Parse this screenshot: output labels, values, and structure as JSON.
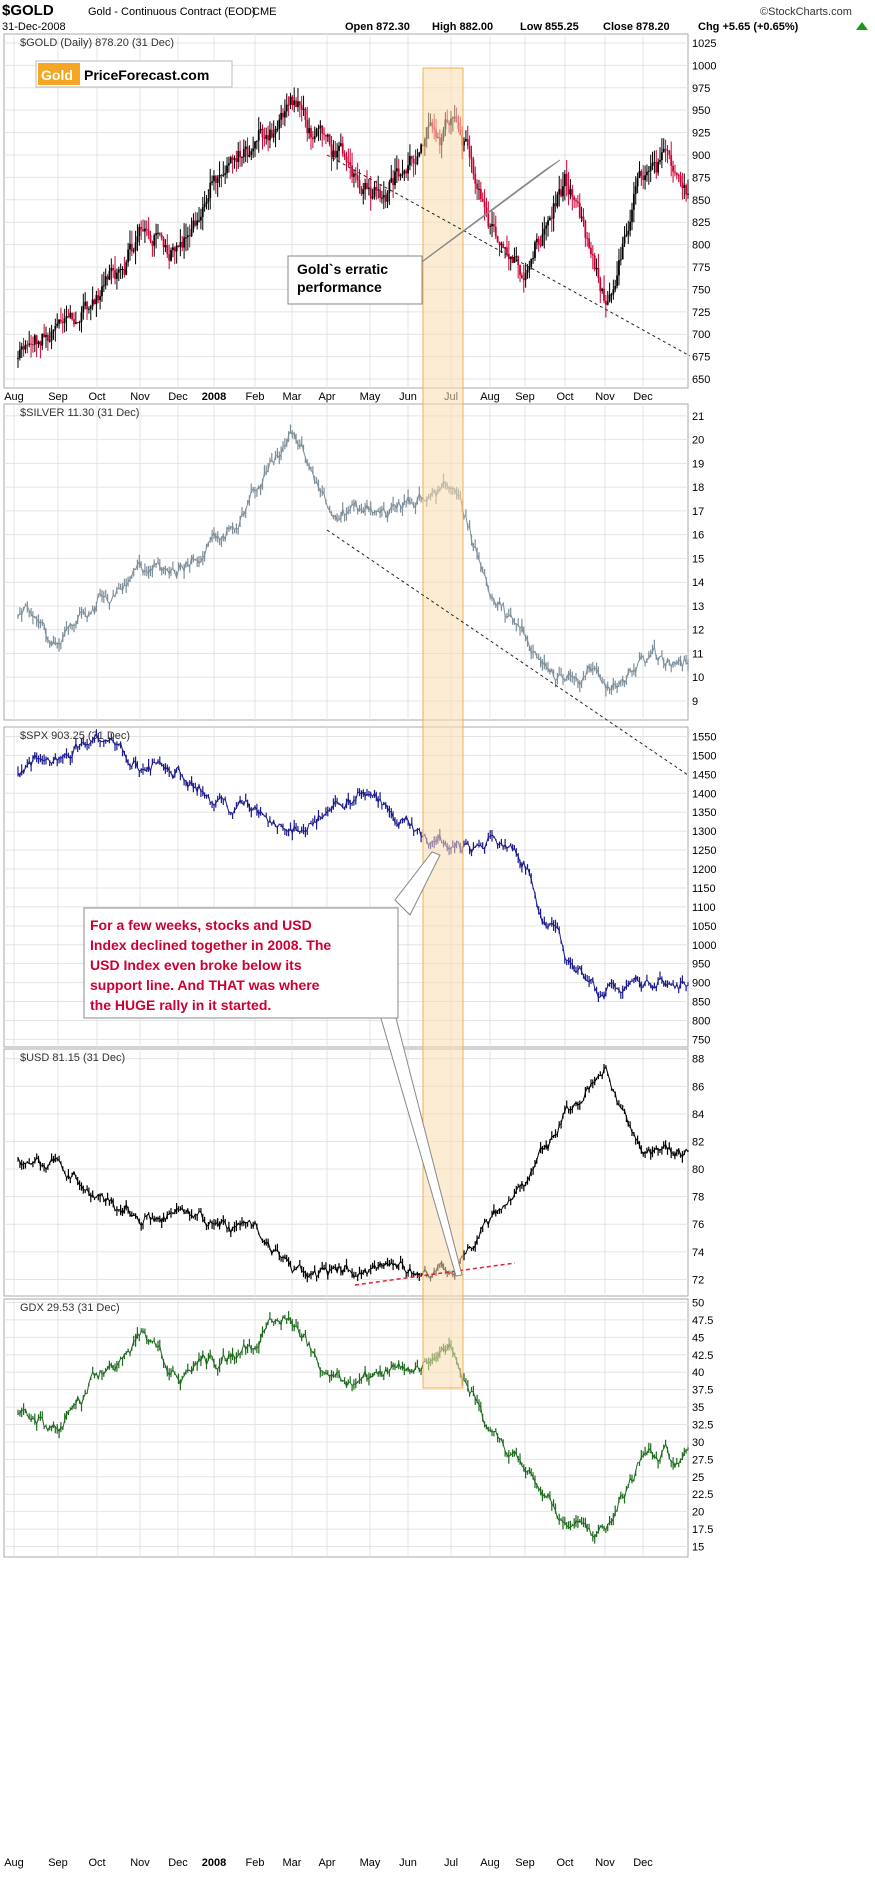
{
  "header": {
    "symbol": "$GOLD",
    "description": "Gold - Continuous Contract (EOD)",
    "exchange": "CME",
    "date": "31-Dec-2008",
    "open": "Open 872.30",
    "high": "High 882.00",
    "low": "Low 855.25",
    "close": "Close 878.20",
    "change": "Chg +5.65 (+0.65%)",
    "source": "©StockCharts.com"
  },
  "logo": {
    "part1": "Gold",
    "part2": "PriceForecast.com"
  },
  "months": [
    "Aug",
    "Sep",
    "Oct",
    "Nov",
    "Dec",
    "2008",
    "Feb",
    "Mar",
    "Apr",
    "May",
    "Jun",
    "Jul",
    "Aug",
    "Sep",
    "Oct",
    "Nov",
    "Dec"
  ],
  "annotations": {
    "gold_callout": [
      "Gold`s erratic",
      "performance"
    ],
    "stocks_usd_callout": [
      "For a few weeks, stocks and USD",
      "Index declined together in 2008. The",
      "USD Index even broke below its",
      "support line. And THAT was where",
      "the HUGE rally in it started."
    ]
  },
  "colors": {
    "gold_up": "#000000",
    "gold_down": "#cc0033",
    "silver": "#7f8f9a",
    "spx": "#1a1a8c",
    "usd": "#000000",
    "gdx": "#1e6b1e",
    "highlight_fill": "#f9ddb0",
    "highlight_stroke": "#f0b050",
    "support_line": "#dd2233",
    "trend_line": "#222222"
  },
  "chart_data": [
    {
      "type": "line",
      "style": "candlestick",
      "title": "$GOLD (Daily) 878.20 (31 Dec)",
      "ylim": [
        640,
        1035
      ],
      "yticks": [
        650,
        675,
        700,
        725,
        750,
        775,
        800,
        825,
        850,
        875,
        900,
        925,
        950,
        975,
        1000,
        1025
      ],
      "x": [
        "2007-08",
        "2007-09",
        "2007-10",
        "2007-11",
        "2007-12",
        "2008-01",
        "2008-02",
        "2008-03",
        "2008-04",
        "2008-05",
        "2008-06",
        "2008-07",
        "2008-08",
        "2008-09",
        "2008-10",
        "2008-11",
        "2008-12"
      ],
      "values": [
        670,
        700,
        740,
        815,
        800,
        865,
        910,
        960,
        900,
        870,
        890,
        940,
        825,
        760,
        870,
        720,
        875
      ]
    },
    {
      "type": "line",
      "title": "$SILVER 11.30 (31 Dec)",
      "ylim": [
        8.2,
        21.5
      ],
      "yticks": [
        9,
        10,
        11,
        12,
        13,
        14,
        15,
        16,
        17,
        18,
        19,
        20,
        21
      ],
      "x": [
        "2007-08",
        "2007-09",
        "2007-10",
        "2007-11",
        "2007-12",
        "2008-01",
        "2008-02",
        "2008-03",
        "2008-04",
        "2008-05",
        "2008-06",
        "2008-07",
        "2008-08",
        "2008-09",
        "2008-10",
        "2008-11",
        "2008-12"
      ],
      "values": [
        12.8,
        11.5,
        13.2,
        14.7,
        14.2,
        15.8,
        17.5,
        20.3,
        17.5,
        16.8,
        17.2,
        18.3,
        14.0,
        11.5,
        10.0,
        9.8,
        10.8
      ]
    },
    {
      "type": "line",
      "title": "$SPX 903.25 (31 Dec)",
      "ylim": [
        730,
        1575
      ],
      "yticks": [
        750,
        800,
        850,
        900,
        950,
        1000,
        1050,
        1100,
        1150,
        1200,
        1250,
        1300,
        1350,
        1400,
        1450,
        1500,
        1550
      ],
      "x": [
        "2007-08",
        "2007-09",
        "2007-10",
        "2007-11",
        "2007-12",
        "2008-01",
        "2008-02",
        "2008-03",
        "2008-04",
        "2008-05",
        "2008-06",
        "2008-07",
        "2008-08",
        "2008-09",
        "2008-10",
        "2008-11",
        "2008-12"
      ],
      "values": [
        1460,
        1500,
        1545,
        1460,
        1490,
        1380,
        1350,
        1320,
        1360,
        1400,
        1320,
        1250,
        1280,
        1200,
        960,
        880,
        890
      ]
    },
    {
      "type": "line",
      "title": "$USD 81.15 (31 Dec)",
      "ylim": [
        70.8,
        88.7
      ],
      "yticks": [
        72,
        74,
        76,
        78,
        80,
        82,
        84,
        86,
        88
      ],
      "x": [
        "2007-08",
        "2007-09",
        "2007-10",
        "2007-11",
        "2007-12",
        "2008-01",
        "2008-02",
        "2008-03",
        "2008-04",
        "2008-05",
        "2008-06",
        "2008-07",
        "2008-08",
        "2008-09",
        "2008-10",
        "2008-11",
        "2008-12"
      ],
      "values": [
        80.8,
        80.2,
        78.5,
        76.5,
        76.8,
        76.2,
        75.5,
        72.5,
        72.3,
        73.0,
        73.2,
        72.4,
        76.5,
        78.5,
        84.0,
        87.0,
        81.2
      ]
    },
    {
      "type": "line",
      "title": "GDX 29.53 (31 Dec)",
      "ylim": [
        13.5,
        50.5
      ],
      "yticks": [
        15,
        17.5,
        20,
        22.5,
        25,
        27.5,
        30,
        32.5,
        35,
        37.5,
        40,
        42.5,
        45,
        47.5,
        50
      ],
      "x": [
        "2007-08",
        "2007-09",
        "2007-10",
        "2007-11",
        "2007-12",
        "2008-01",
        "2008-02",
        "2008-03",
        "2008-04",
        "2008-05",
        "2008-06",
        "2008-07",
        "2008-08",
        "2008-09",
        "2008-10",
        "2008-11",
        "2008-12"
      ],
      "values": [
        34,
        31.5,
        38,
        45,
        40,
        42,
        45,
        47.5,
        40,
        40,
        39,
        44,
        32,
        27,
        17.5,
        17,
        28
      ]
    }
  ]
}
